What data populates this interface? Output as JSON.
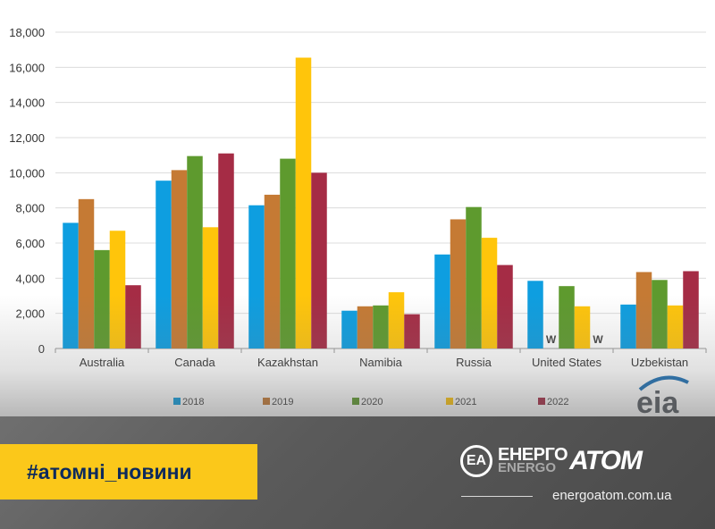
{
  "chart_data": {
    "type": "bar",
    "categories": [
      "Australia",
      "Canada",
      "Kazakhstan",
      "Namibia",
      "Russia",
      "United States",
      "Uzbekistan"
    ],
    "series": [
      {
        "name": "2018",
        "color": "#0e9ee0",
        "values": [
          7150,
          9550,
          8150,
          2150,
          5350,
          3850,
          2500
        ]
      },
      {
        "name": "2019",
        "color": "#c57a34",
        "values": [
          8500,
          10150,
          8750,
          2400,
          7350,
          null,
          4350
        ]
      },
      {
        "name": "2020",
        "color": "#5e9a2e",
        "values": [
          5600,
          10950,
          10800,
          2450,
          8050,
          3550,
          3900
        ]
      },
      {
        "name": "2021",
        "color": "#ffc50b",
        "values": [
          6700,
          6900,
          16550,
          3200,
          6300,
          2400,
          2450
        ]
      },
      {
        "name": "2022",
        "color": "#a52c45",
        "values": [
          3600,
          11100,
          10000,
          1950,
          4750,
          null,
          4400
        ]
      }
    ],
    "withheld_labels": [
      {
        "category": "United States",
        "series": "2019",
        "text": "W"
      },
      {
        "category": "United States",
        "series": "2022",
        "text": "W"
      }
    ],
    "yticks": [
      "0",
      "2,000",
      "4,000",
      "6,000",
      "8,000",
      "10,000",
      "12,000",
      "14,000",
      "16,000",
      "18,000"
    ],
    "ylim": [
      0,
      18000
    ],
    "grid": true,
    "legend_position": "bottom",
    "title": "",
    "xlabel": "",
    "ylabel": ""
  },
  "branding": {
    "source_logo": "eia",
    "hashtag": "#атомні_новини",
    "logo_word1": "ЕНЕРГО",
    "logo_word1_ghost": "ENERGO",
    "logo_word2": "АТОМ",
    "logo_mark": "ЕА",
    "website": "energoatom.com.ua"
  }
}
